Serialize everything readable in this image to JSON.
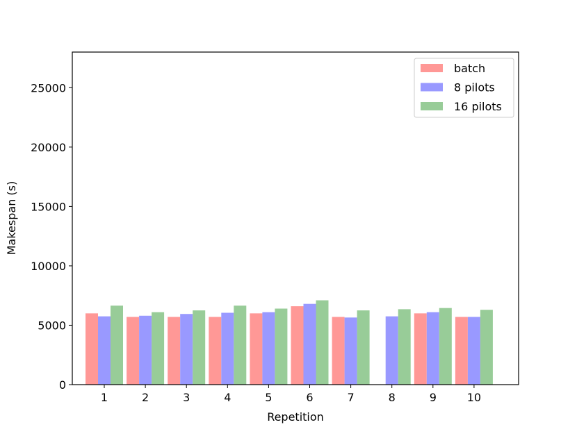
{
  "chart_data": {
    "type": "bar",
    "title": "",
    "xlabel": "Repetition",
    "ylabel": "Makespan (s)",
    "ylim": [
      0,
      28000
    ],
    "yticks": [
      0,
      5000,
      10000,
      15000,
      20000,
      25000
    ],
    "categories": [
      "1",
      "2",
      "3",
      "4",
      "5",
      "6",
      "7",
      "8",
      "9",
      "10"
    ],
    "grid": false,
    "legend_position": "top-right",
    "series": [
      {
        "name": "batch",
        "color": "#ff9896",
        "values": [
          6000,
          5700,
          5700,
          5700,
          6000,
          6600,
          5700,
          null,
          6000,
          5700
        ]
      },
      {
        "name": "8 pilots",
        "color": "#9999ff",
        "values": [
          5750,
          5800,
          5950,
          6050,
          6100,
          6800,
          5650,
          5750,
          6100,
          5700
        ]
      },
      {
        "name": "16 pilots",
        "color": "#98cc98",
        "values": [
          6650,
          6100,
          6250,
          6650,
          6400,
          7100,
          6250,
          6350,
          6450,
          6300
        ]
      }
    ]
  }
}
